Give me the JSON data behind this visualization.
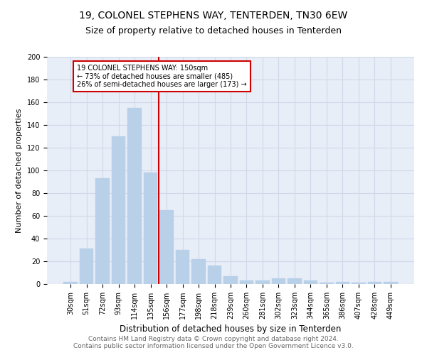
{
  "title1": "19, COLONEL STEPHENS WAY, TENTERDEN, TN30 6EW",
  "title2": "Size of property relative to detached houses in Tenterden",
  "xlabel": "Distribution of detached houses by size in Tenterden",
  "ylabel": "Number of detached properties",
  "footer1": "Contains HM Land Registry data © Crown copyright and database right 2024.",
  "footer2": "Contains public sector information licensed under the Open Government Licence v3.0.",
  "bar_labels": [
    "30sqm",
    "51sqm",
    "72sqm",
    "93sqm",
    "114sqm",
    "135sqm",
    "156sqm",
    "177sqm",
    "198sqm",
    "218sqm",
    "239sqm",
    "260sqm",
    "281sqm",
    "302sqm",
    "323sqm",
    "344sqm",
    "365sqm",
    "386sqm",
    "407sqm",
    "428sqm",
    "449sqm"
  ],
  "bar_values": [
    2,
    31,
    93,
    130,
    155,
    98,
    65,
    30,
    22,
    16,
    7,
    3,
    3,
    5,
    5,
    3,
    1,
    2,
    1,
    2,
    2
  ],
  "bar_color": "#b8d0e8",
  "bar_edge_color": "#b8d0e8",
  "vline_index": 5.5,
  "vline_color": "#cc0000",
  "annotation_text": "19 COLONEL STEPHENS WAY: 150sqm\n← 73% of detached houses are smaller (485)\n26% of semi-detached houses are larger (173) →",
  "annotation_box_color": "#ffffff",
  "annotation_box_edge": "#cc0000",
  "ylim": [
    0,
    200
  ],
  "yticks": [
    0,
    20,
    40,
    60,
    80,
    100,
    120,
    140,
    160,
    180,
    200
  ],
  "grid_color": "#d0d8e8",
  "bg_color": "#e8eef8",
  "title1_fontsize": 10,
  "title2_fontsize": 9,
  "xlabel_fontsize": 8.5,
  "ylabel_fontsize": 8,
  "tick_fontsize": 7,
  "footer_fontsize": 6.5,
  "annotation_fontsize": 7
}
